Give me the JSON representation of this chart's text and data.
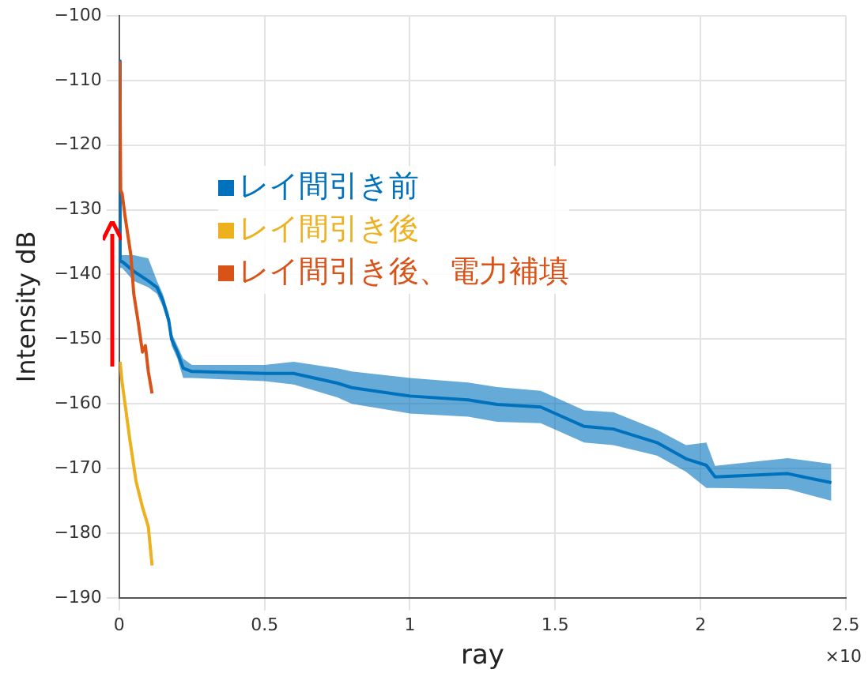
{
  "chart_data": {
    "type": "line",
    "xlabel": "ray",
    "ylabel": "Intensity dB",
    "xlim": [
      0,
      2.5
    ],
    "xticks": [
      0,
      0.5,
      1,
      1.5,
      2,
      2.5
    ],
    "ylim": [
      -190,
      -100
    ],
    "yticks": [
      -190,
      -180,
      -170,
      -160,
      -150,
      -140,
      -130,
      -120,
      -110,
      -100
    ],
    "grid": true,
    "legend": "top left",
    "marker": "none",
    "line_style": "solid",
    "annotations": [
      "×10"
    ],
    "series": [
      {
        "name": "レイ間引き前",
        "color": "#0072bd",
        "x": [
          0,
          0.003,
          0.01,
          0.05,
          0.1,
          0.13,
          0.15,
          0.17,
          0.18,
          0.2,
          0.22,
          0.25,
          0.5,
          0.6,
          0.75,
          0.8,
          1.0,
          1.2,
          1.3,
          1.45,
          1.6,
          1.7,
          1.85,
          1.95,
          2.02,
          2.05,
          2.3,
          2.45
        ],
        "values": [
          -107,
          -138,
          -138,
          -139.5,
          -141,
          -142,
          -144,
          -147,
          -150,
          -152,
          -154.5,
          -155,
          -155.3,
          -155.3,
          -156.8,
          -157.5,
          -158.8,
          -159.4,
          -160.1,
          -160.5,
          -163.5,
          -163.9,
          -166,
          -168.5,
          -169.5,
          -171.3,
          -170.8,
          -172.2
        ],
        "lower": [
          -107,
          -139,
          -139,
          -141,
          -142,
          -143,
          -145,
          -148,
          -151,
          -153,
          -156,
          -156,
          -156.5,
          -157,
          -159,
          -160,
          -161.5,
          -162,
          -162.8,
          -163,
          -166,
          -166.4,
          -168,
          -170.5,
          -173,
          -173,
          -173.2,
          -175
        ],
        "upper": [
          -107,
          -137,
          -137,
          -137,
          -137.5,
          -141,
          -143,
          -146,
          -149,
          -151,
          -153,
          -154,
          -154,
          -153.5,
          -154.5,
          -155,
          -156,
          -156.7,
          -157.4,
          -158,
          -161,
          -161.3,
          -164,
          -166.4,
          -166,
          -169.6,
          -168.4,
          -169.3
        ]
      },
      {
        "name": "レイ間引き後",
        "color": "#edb120",
        "x": [
          0.003,
          0.01,
          0.037,
          0.058,
          0.08,
          0.1,
          0.113
        ],
        "values": [
          -153.5,
          -156.7,
          -165.7,
          -172,
          -176,
          -179,
          -185
        ]
      },
      {
        "name": "レイ間引き後、電力補填",
        "color": "#d95319",
        "x": [
          0.002,
          0.005,
          0.01,
          0.02,
          0.03,
          0.04,
          0.05,
          0.064,
          0.08,
          0.09,
          0.1,
          0.113
        ],
        "values": [
          -107,
          -127,
          -127.5,
          -131,
          -134,
          -137,
          -143,
          -147,
          -152,
          -151,
          -155,
          -158.4
        ]
      }
    ]
  }
}
